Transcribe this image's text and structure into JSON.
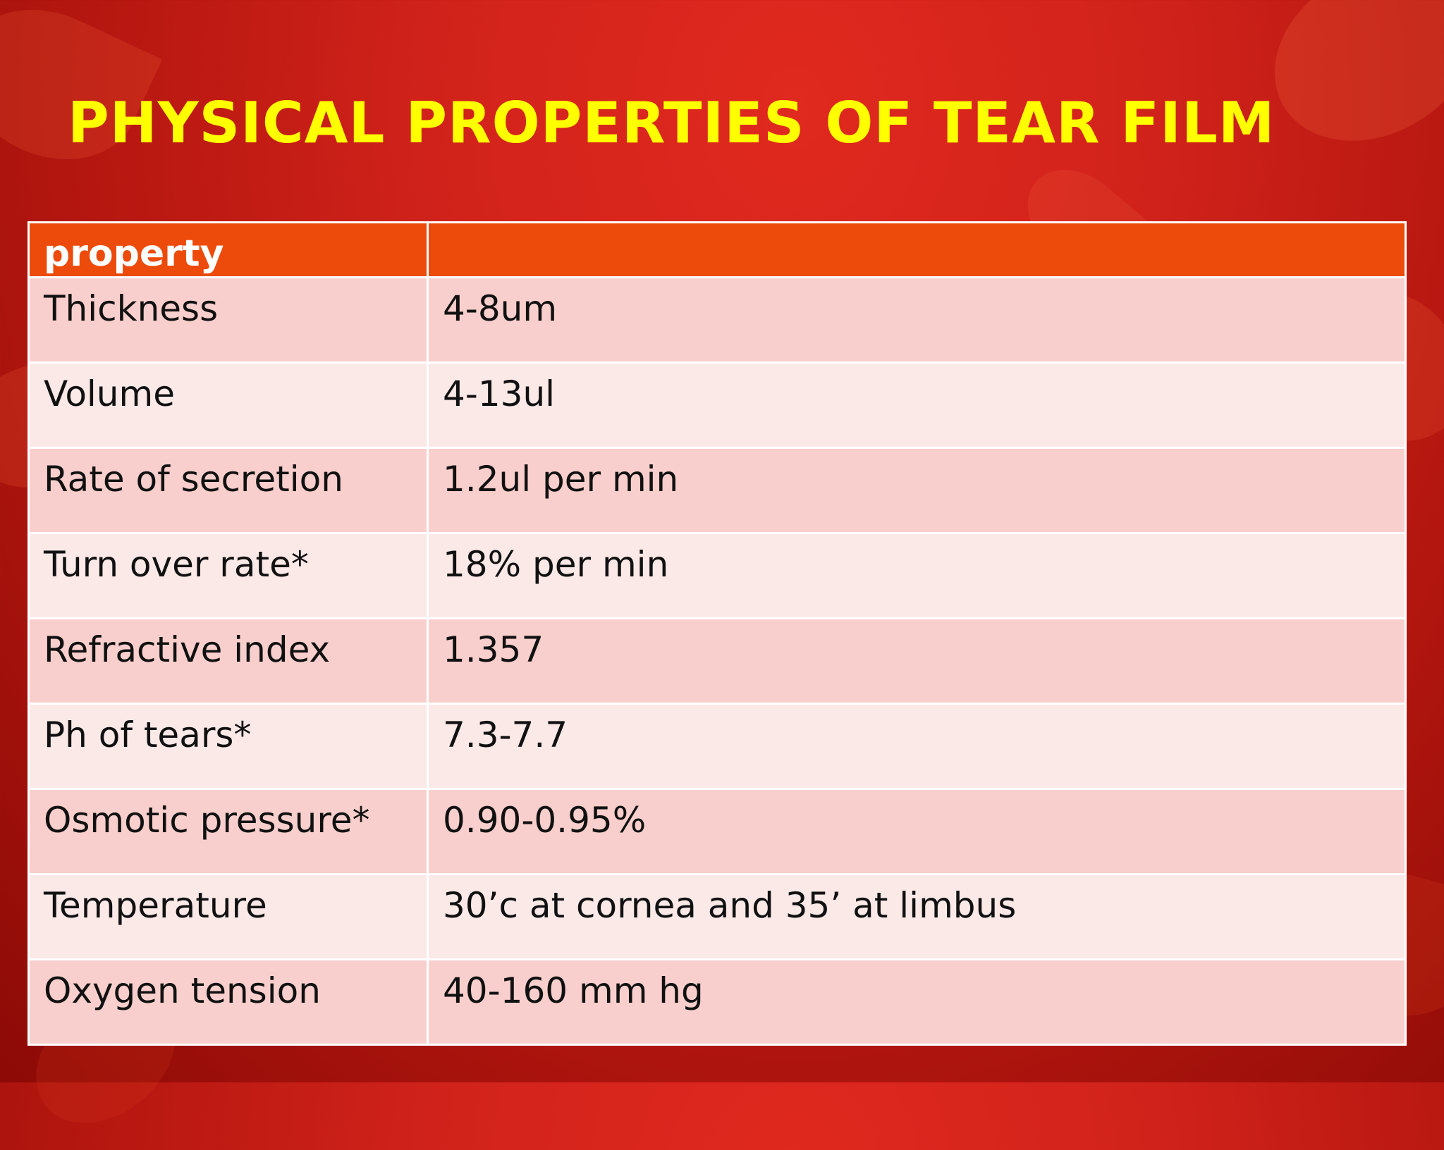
{
  "slide": {
    "title": "PHYSICAL PROPERTIES OF TEAR FILM"
  },
  "table": {
    "headers": [
      "property",
      ""
    ],
    "rows": [
      [
        "Thickness",
        "4-8um"
      ],
      [
        "Volume",
        "4-13ul"
      ],
      [
        "Rate of secretion",
        "1.2ul per min"
      ],
      [
        "Turn over rate*",
        "18% per min"
      ],
      [
        "Refractive index",
        "1.357"
      ],
      [
        "Ph of tears*",
        "7.3-7.7"
      ],
      [
        "Osmotic pressure*",
        "0.90-0.95%"
      ],
      [
        "Temperature",
        "30’c at cornea and 35’ at limbus"
      ],
      [
        "Oxygen tension",
        "40-160 mm hg"
      ]
    ]
  },
  "colors": {
    "title": "#ffff00",
    "header_row": "#ec4b0b",
    "row_odd": "#f8cfcc",
    "row_even": "#fbe9e8",
    "background": "#d2231b"
  }
}
